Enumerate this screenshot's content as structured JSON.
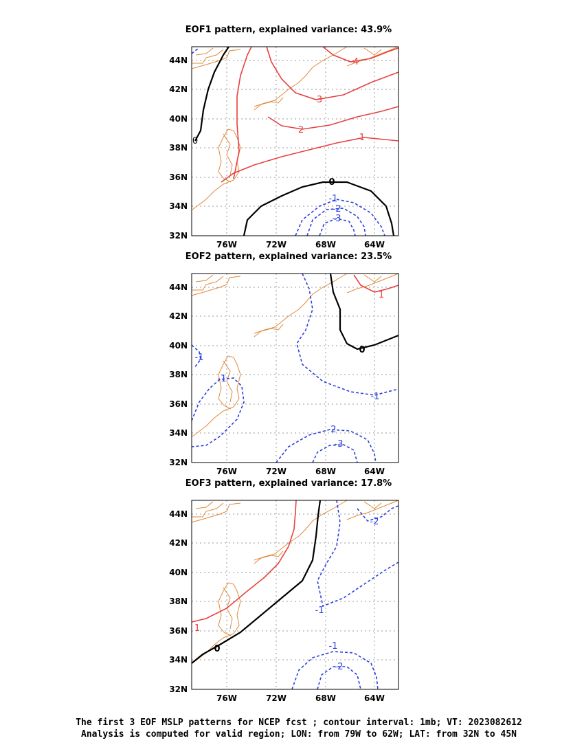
{
  "panels": [
    {
      "title": "EOF1 pattern, explained variance: 43.9%",
      "contour_labels": [
        "0",
        "1",
        "2",
        "3",
        "4",
        "-1",
        "-2",
        "-3",
        "0"
      ]
    },
    {
      "title": "EOF2 pattern, explained variance: 23.5%",
      "contour_labels": [
        "0",
        "1",
        "-1",
        "-1",
        "-1",
        "-2",
        "-3"
      ]
    },
    {
      "title": "EOF3 pattern, explained variance: 17.8%",
      "contour_labels": [
        "0",
        "1",
        "-1",
        "-2",
        "-1",
        "-2"
      ]
    }
  ],
  "axes": {
    "lon_ticks": [
      "76W",
      "72W",
      "68W",
      "64W"
    ],
    "lat_ticks": [
      "44N",
      "42N",
      "40N",
      "38N",
      "36N",
      "34N",
      "32N"
    ]
  },
  "caption": {
    "line1": "The first 3 EOF MSLP patterns for NCEP fcst ; contour interval: 1mb; VT: 2023082612",
    "line2": "Analysis is computed for valid region; LON: from 79W to 62W; LAT: from 32N to 45N"
  },
  "colors": {
    "positive": "#e84040",
    "negative": "#2a3fe0",
    "zero": "#000000",
    "coast": "#e08a3a",
    "grid": "#9a9a9a"
  }
}
